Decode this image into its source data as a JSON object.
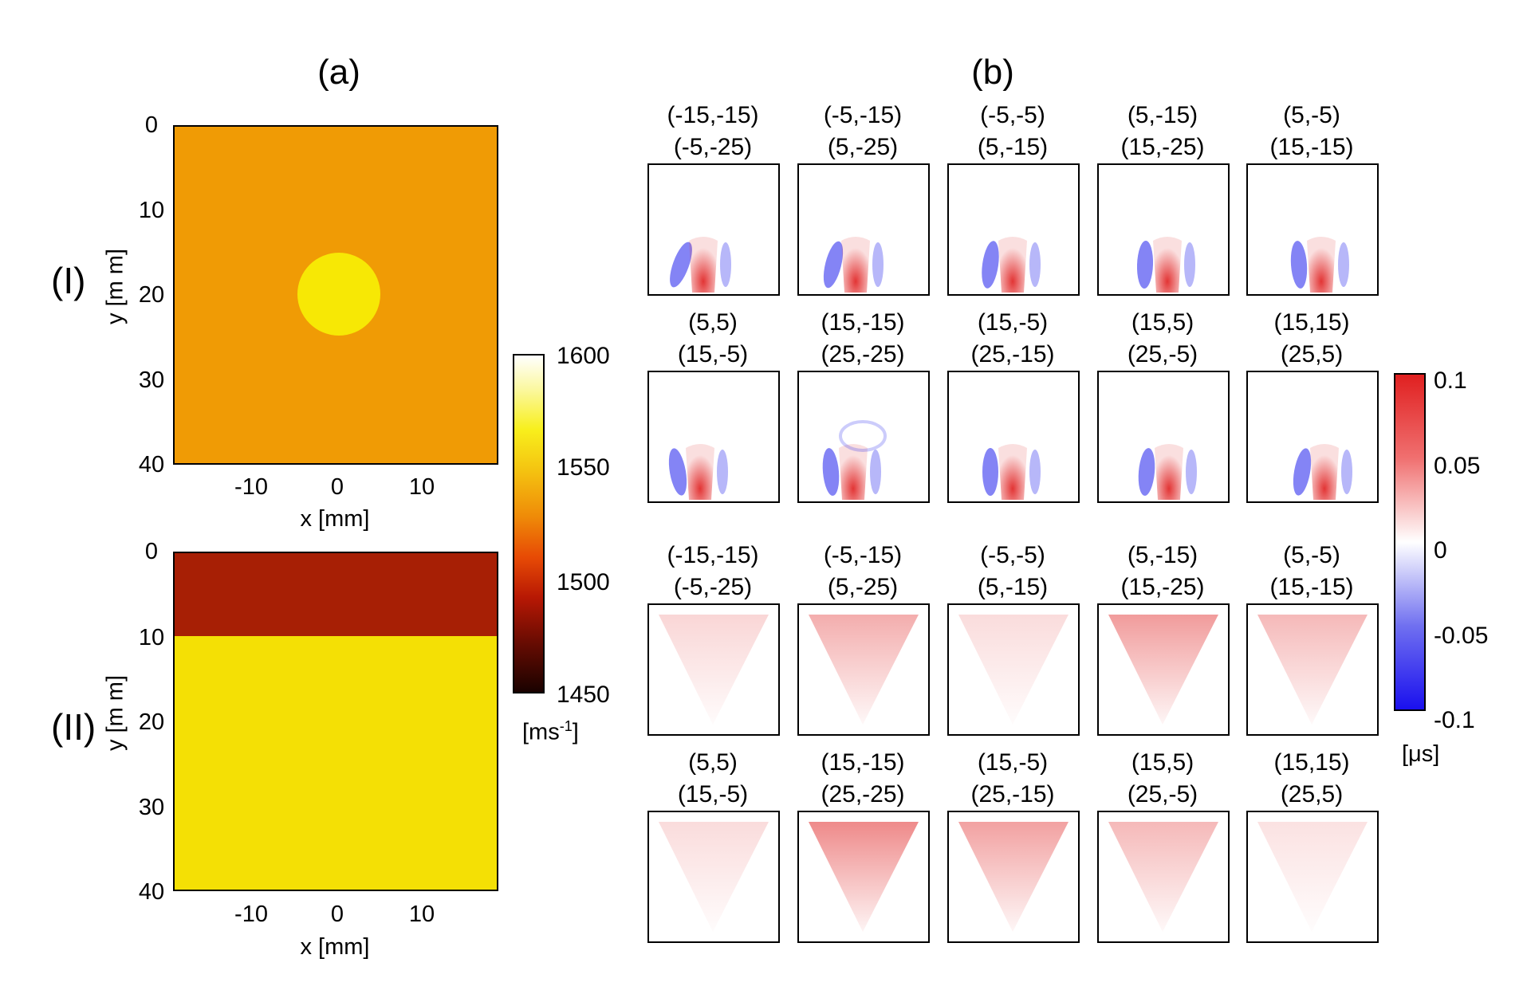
{
  "panel_a": {
    "label": "(a)",
    "rows": [
      {
        "label": "(I)",
        "ylabel": "y [m m]",
        "xlabel": "x [mm]",
        "description_type": "circular inclusion"
      },
      {
        "label": "(II)",
        "ylabel": "y [m m]",
        "xlabel": "x [mm]",
        "description_type": "layered"
      }
    ],
    "x_ticks": [
      "-10",
      "0",
      "10"
    ],
    "y_ticks": [
      "0",
      "10",
      "20",
      "30",
      "40"
    ],
    "colorbar": {
      "ticks": [
        "1600",
        "1550",
        "1500",
        "1450"
      ],
      "unit_main": "[ms",
      "unit_sup": "-1",
      "unit_end": "]"
    },
    "colors": {
      "background_I": "#f09b05",
      "inclusion_I": "#f7e805",
      "top_II": "#a71f05",
      "bottom_II": "#f4e005"
    }
  },
  "panel_b": {
    "label": "(b)",
    "titles": [
      [
        "(-15,-15)",
        "(-5,-25)"
      ],
      [
        "(-5,-15)",
        "(5,-25)"
      ],
      [
        "(-5,-5)",
        "(5,-15)"
      ],
      [
        "(5,-15)",
        "(15,-25)"
      ],
      [
        "(5,-5)",
        "(15,-15)"
      ],
      [
        "(5,5)",
        "(15,-5)"
      ],
      [
        "(15,-15)",
        "(25,-25)"
      ],
      [
        "(15,-5)",
        "(25,-15)"
      ],
      [
        "(15,5)",
        "(25,-5)"
      ],
      [
        "(15,15)",
        "(25,5)"
      ],
      [
        "(-15,-15)",
        "(-5,-25)"
      ],
      [
        "(-5,-15)",
        "(5,-25)"
      ],
      [
        "(-5,-5)",
        "(5,-15)"
      ],
      [
        "(5,-15)",
        "(15,-25)"
      ],
      [
        "(5,-5)",
        "(15,-15)"
      ],
      [
        "(5,5)",
        "(15,-5)"
      ],
      [
        "(15,-15)",
        "(25,-25)"
      ],
      [
        "(15,-5)",
        "(25,-15)"
      ],
      [
        "(15,5)",
        "(25,-5)"
      ],
      [
        "(15,15)",
        "(25,5)"
      ]
    ],
    "colorbar": {
      "ticks": [
        "0.1",
        "0.05",
        "0",
        "-0.05",
        "-0.1"
      ],
      "unit": "[μs]"
    },
    "colors": {
      "red": "#e12a2a",
      "blue": "#3232ee"
    }
  }
}
